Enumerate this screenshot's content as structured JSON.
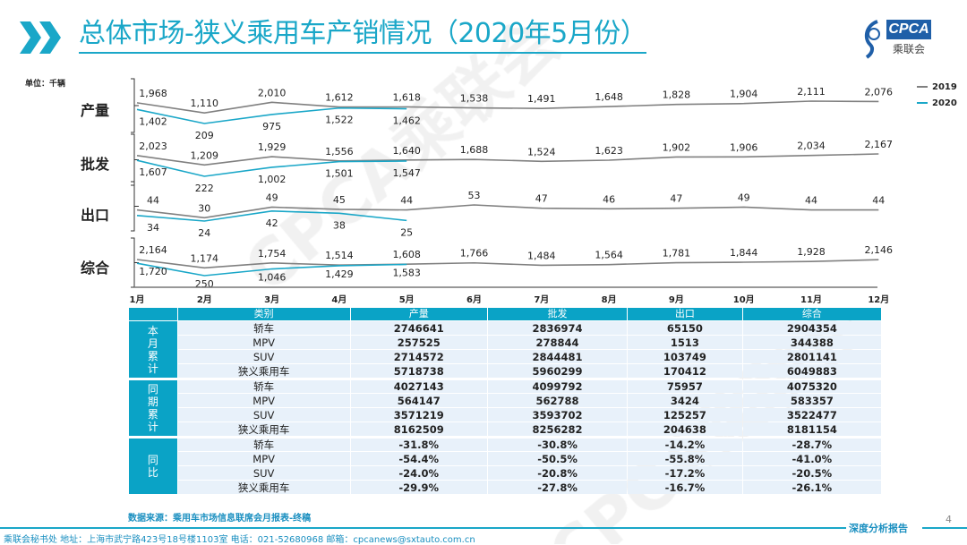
{
  "header": {
    "title": "总体市场-狭义乘用车产销情况（2020年5月份）",
    "logo_text": "CPCA",
    "logo_sub": "乘联会"
  },
  "watermark": "CPCA乘联会",
  "colors": {
    "accent": "#1aa7c8",
    "series_2019": "#808080",
    "series_2020": "#1aa7c8",
    "table_header": "#0aa3c6",
    "table_cell": "#e8f1fa"
  },
  "chart_data": {
    "type": "line",
    "unit": "单位：千辆",
    "categories": [
      "1月",
      "2月",
      "3月",
      "4月",
      "5月",
      "6月",
      "7月",
      "8月",
      "9月",
      "10月",
      "11月",
      "12月"
    ],
    "legend": [
      "2019",
      "2020"
    ],
    "legend_position": "top-right",
    "panels": [
      {
        "label": "产量",
        "series": [
          {
            "name": "2019",
            "values": [
              1968,
              1110,
              2010,
              1612,
              1618,
              1538,
              1491,
              1648,
              1828,
              1904,
              2111,
              2076
            ]
          },
          {
            "name": "2020",
            "values": [
              1402,
              209,
              975,
              1522,
              1462
            ]
          }
        ]
      },
      {
        "label": "批发",
        "series": [
          {
            "name": "2019",
            "values": [
              2023,
              1209,
              1929,
              1556,
              1640,
              1688,
              1524,
              1623,
              1902,
              1906,
              2034,
              2167
            ]
          },
          {
            "name": "2020",
            "values": [
              1607,
              222,
              1002,
              1501,
              1547
            ]
          }
        ]
      },
      {
        "label": "出口",
        "series": [
          {
            "name": "2019",
            "values": [
              44,
              30,
              49,
              45,
              44,
              53,
              47,
              46,
              47,
              49,
              44,
              44
            ]
          },
          {
            "name": "2020",
            "values": [
              34,
              24,
              42,
              38,
              25
            ]
          }
        ]
      },
      {
        "label": "综合",
        "series": [
          {
            "name": "2019",
            "values": [
              2164,
              1174,
              1754,
              1514,
              1608,
              1766,
              1484,
              1564,
              1781,
              1844,
              1928,
              2146
            ]
          },
          {
            "name": "2020",
            "values": [
              1720,
              250,
              1046,
              1429,
              1583
            ]
          }
        ]
      }
    ]
  },
  "table": {
    "headers": [
      "",
      "类别",
      "产量",
      "批发",
      "出口",
      "综合"
    ],
    "groups": [
      {
        "label": "本月累计",
        "rows": [
          [
            "轿车",
            "2746641",
            "2836974",
            "65150",
            "2904354"
          ],
          [
            "MPV",
            "257525",
            "278844",
            "1513",
            "344388"
          ],
          [
            "SUV",
            "2714572",
            "2844481",
            "103749",
            "2801141"
          ],
          [
            "狭义乘用车",
            "5718738",
            "5960299",
            "170412",
            "6049883"
          ]
        ]
      },
      {
        "label": "同期累计",
        "rows": [
          [
            "轿车",
            "4027143",
            "4099792",
            "75957",
            "4075320"
          ],
          [
            "MPV",
            "564147",
            "562788",
            "3424",
            "583357"
          ],
          [
            "SUV",
            "3571219",
            "3593702",
            "125257",
            "3522477"
          ],
          [
            "狭义乘用车",
            "8162509",
            "8256282",
            "204638",
            "8181154"
          ]
        ]
      },
      {
        "label": "同比",
        "rows": [
          [
            "轿车",
            "-31.8%",
            "-30.8%",
            "-14.2%",
            "-28.7%"
          ],
          [
            "MPV",
            "-54.4%",
            "-50.5%",
            "-55.8%",
            "-41.0%"
          ],
          [
            "SUV",
            "-24.0%",
            "-20.8%",
            "-17.2%",
            "-20.5%"
          ],
          [
            "狭义乘用车",
            "-29.9%",
            "-27.8%",
            "-16.7%",
            "-26.1%"
          ]
        ]
      }
    ]
  },
  "source": "数据来源：乘用车市场信息联席会月报表-终稿",
  "footer": {
    "text": "乘联会秘书处   地址：上海市武宁路423号18号楼1103室   电话：021-52680968   邮箱：cpcanews@sxtauto.com.cn",
    "report": "深度分析报告",
    "page": "4"
  }
}
